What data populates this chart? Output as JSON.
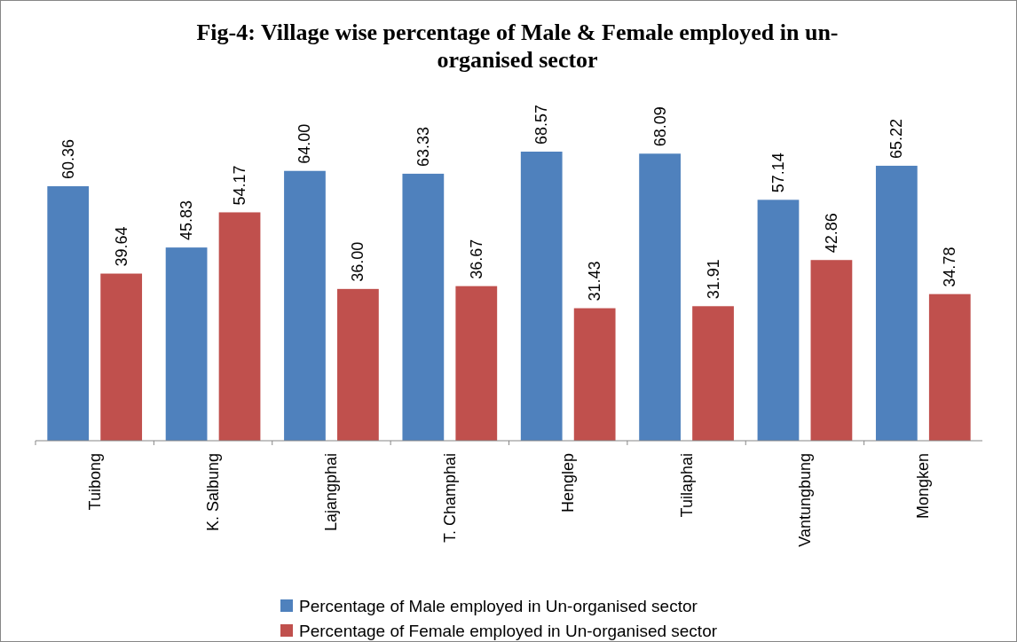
{
  "chart_data": {
    "type": "bar",
    "title": "Fig-4: Village wise percentage of Male & Female employed in un-organised sector",
    "categories": [
      "Tuibong",
      "K. Salbung",
      "Lajangphai",
      "T. Champhai",
      "Henglep",
      "Tuilaphai",
      "Vantungbung",
      "Mongken"
    ],
    "series": [
      {
        "name": "Percentage of Male employed in Un-organised sector",
        "color": "#4f81bd",
        "values": [
          60.36,
          45.83,
          64.0,
          63.33,
          68.57,
          68.09,
          57.14,
          65.22
        ],
        "value_labels": [
          "60.36",
          "45.83",
          "64.00",
          "63.33",
          "68.57",
          "68.09",
          "57.14",
          "65.22"
        ]
      },
      {
        "name": "Percentage of Female employed in Un-organised sector",
        "color": "#c0504d",
        "values": [
          39.64,
          54.17,
          36.0,
          36.67,
          31.43,
          31.91,
          42.86,
          34.78
        ],
        "value_labels": [
          "39.64",
          "54.17",
          "36.00",
          "36.67",
          "31.43",
          "31.91",
          "42.86",
          "34.78"
        ]
      }
    ],
    "tick_labels": "x",
    "legend": "bottom"
  }
}
